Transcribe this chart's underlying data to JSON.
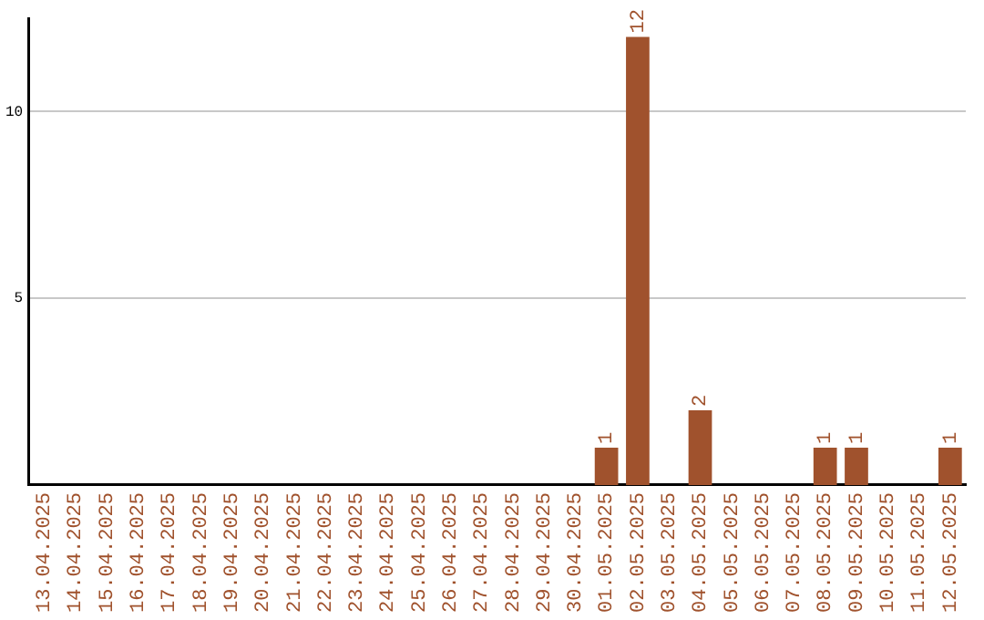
{
  "chart_data": {
    "type": "bar",
    "categories": [
      "13.04.2025",
      "14.04.2025",
      "15.04.2025",
      "16.04.2025",
      "17.04.2025",
      "18.04.2025",
      "19.04.2025",
      "20.04.2025",
      "21.04.2025",
      "22.04.2025",
      "23.04.2025",
      "24.04.2025",
      "25.04.2025",
      "26.04.2025",
      "27.04.2025",
      "28.04.2025",
      "29.04.2025",
      "30.04.2025",
      "01.05.2025",
      "02.05.2025",
      "03.05.2025",
      "04.05.2025",
      "05.05.2025",
      "06.05.2025",
      "07.05.2025",
      "08.05.2025",
      "09.05.2025",
      "10.05.2025",
      "11.05.2025",
      "12.05.2025"
    ],
    "values": [
      0,
      0,
      0,
      0,
      0,
      0,
      0,
      0,
      0,
      0,
      0,
      0,
      0,
      0,
      0,
      0,
      0,
      0,
      1,
      12,
      0,
      2,
      0,
      0,
      0,
      1,
      1,
      0,
      0,
      1
    ],
    "value_labels": [
      null,
      null,
      null,
      null,
      null,
      null,
      null,
      null,
      null,
      null,
      null,
      null,
      null,
      null,
      null,
      null,
      null,
      null,
      "1",
      "12",
      null,
      "2",
      null,
      null,
      null,
      "1",
      "1",
      null,
      null,
      "1"
    ],
    "color": "#a0522d",
    "ylim": [
      0,
      12.5
    ],
    "yticks": [
      5,
      10
    ],
    "grid": "y",
    "legend": false
  }
}
